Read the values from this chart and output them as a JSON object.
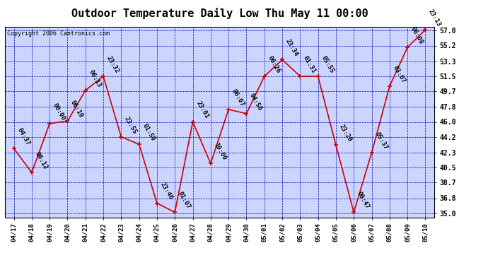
{
  "title": "Outdoor Temperature Daily Low Thu May 11 00:00",
  "copyright": "Copyright 2006 Cantronics.com",
  "background_color": "#ffffff",
  "plot_bg_color": "#ccd5ff",
  "line_color": "#cc0000",
  "marker_color": "#cc0000",
  "grid_color": "#0000aa",
  "text_color": "#000000",
  "x_labels": [
    "04/17",
    "04/18",
    "04/19",
    "04/20",
    "04/21",
    "04/22",
    "04/23",
    "04/24",
    "04/25",
    "04/26",
    "04/27",
    "04/28",
    "04/29",
    "04/30",
    "05/01",
    "05/02",
    "05/03",
    "05/04",
    "05/05",
    "05/06",
    "05/07",
    "05/08",
    "05/09",
    "05/10"
  ],
  "y_values": [
    42.8,
    39.9,
    45.8,
    46.1,
    49.8,
    51.5,
    44.2,
    43.3,
    36.2,
    35.1,
    46.0,
    41.0,
    47.5,
    47.0,
    51.5,
    53.5,
    51.5,
    51.5,
    43.2,
    35.1,
    42.3,
    50.3,
    55.0,
    57.1
  ],
  "point_labels": [
    "04:37",
    "06:12",
    "00:00",
    "06:10",
    "06:13",
    "23:32",
    "23:55",
    "01:50",
    "23:46",
    "01:07",
    "23:01",
    "10:00",
    "06:07",
    "04:56",
    "06:26",
    "23:34",
    "01:31",
    "05:55",
    "23:20",
    "00:47",
    "05:37",
    "03:07",
    "06:08",
    "23:13"
  ],
  "y_ticks": [
    35.0,
    36.8,
    38.7,
    40.5,
    42.3,
    44.2,
    46.0,
    47.8,
    49.7,
    51.5,
    53.3,
    55.2,
    57.0
  ],
  "ylim": [
    34.5,
    57.5
  ],
  "title_fontsize": 11,
  "label_fontsize": 6.5,
  "copyright_fontsize": 6
}
